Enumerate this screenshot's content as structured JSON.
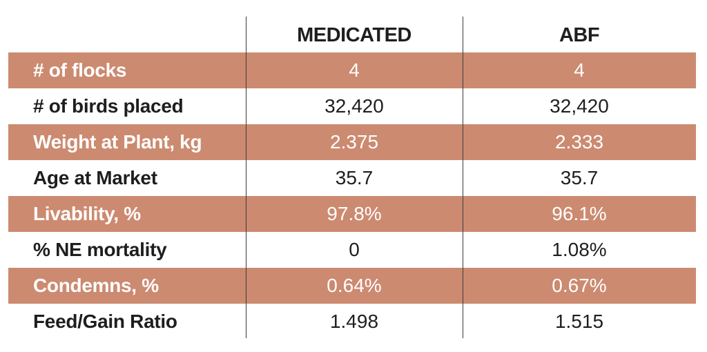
{
  "table": {
    "columns": [
      "",
      "MEDICATED",
      "ABF"
    ],
    "rows": [
      {
        "label": "# of flocks",
        "medicated": "4",
        "abf": "4"
      },
      {
        "label": "# of birds placed",
        "medicated": "32,420",
        "abf": "32,420"
      },
      {
        "label": "Weight at Plant, kg",
        "medicated": "2.375",
        "abf": "2.333"
      },
      {
        "label": "Age at Market",
        "medicated": "35.7",
        "abf": "35.7"
      },
      {
        "label": "Livability, %",
        "medicated": "97.8%",
        "abf": "96.1%"
      },
      {
        "label": "% NE mortality",
        "medicated": "0",
        "abf": "1.08%"
      },
      {
        "label": "Condemns, %",
        "medicated": "0.64%",
        "abf": "0.67%"
      },
      {
        "label": "Feed/Gain Ratio",
        "medicated": "1.498",
        "abf": "1.515"
      }
    ]
  },
  "colors": {
    "shaded_row": "#cc8a70",
    "text": "#1e1e1e",
    "shaded_text": "#ffffff"
  }
}
